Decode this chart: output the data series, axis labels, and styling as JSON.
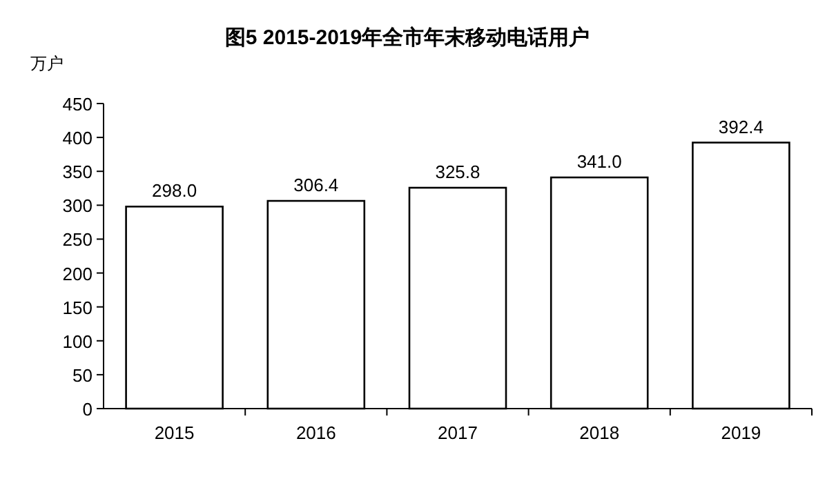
{
  "chart_data": {
    "type": "bar",
    "title": "图5 2015-2019年全市年末移动电话用户",
    "ylabel": "万户",
    "categories": [
      "2015",
      "2016",
      "2017",
      "2018",
      "2019"
    ],
    "values": [
      298.0,
      306.4,
      325.8,
      341.0,
      392.4
    ],
    "value_labels": [
      "298.0",
      "306.4",
      "325.8",
      "341.0",
      "392.4"
    ],
    "color": "#ffffff",
    "ylim": [
      0,
      450
    ],
    "yticks": [
      0,
      50,
      100,
      150,
      200,
      250,
      300,
      350,
      400,
      450
    ],
    "grid": false
  }
}
